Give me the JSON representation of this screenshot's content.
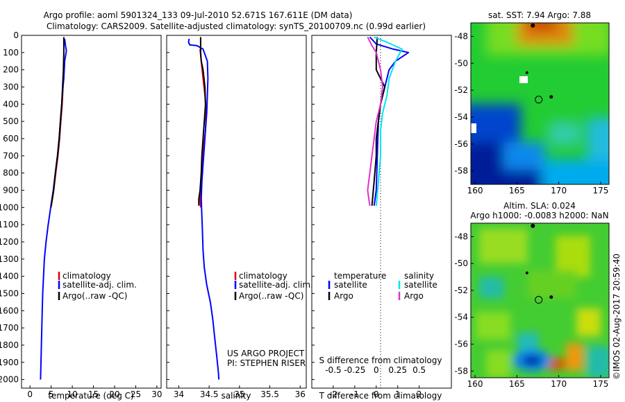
{
  "header": {
    "line1": "Argo profile: aoml 5901324_133 09-Jul-2010 52.671S 167.611E (DM data)",
    "line2": "Climatology: CARS2009. Satellite-adjusted climatology: synTS_20100709.nc (0.99d earlier)"
  },
  "colors": {
    "climatology": "#e00000",
    "satellite": "#0000ff",
    "argo": "#000000",
    "salinity_satellite": "#00e5ee",
    "salinity_argo": "#dd33cc"
  },
  "credits": {
    "project": "US ARGO PROJECT",
    "pi": "PI: STEPHEN RISER"
  },
  "watermark": "©IMOS 02-Aug-2017 20:59:40",
  "chart_data": [
    {
      "type": "line",
      "xlabel": "temperature (deg C)",
      "ylabel": "",
      "xlim": [
        -2,
        31
      ],
      "ylim": [
        2050,
        0
      ],
      "xticks": [
        0,
        5,
        10,
        15,
        20,
        25,
        30
      ],
      "yticks": [
        0,
        100,
        200,
        300,
        400,
        500,
        600,
        700,
        800,
        900,
        1000,
        1100,
        1200,
        1300,
        1400,
        1500,
        1600,
        1700,
        1800,
        1900,
        2000
      ],
      "legend": [
        "climatology",
        "satellite-adj. clim.",
        "Argo(..raw -QC)"
      ],
      "series": [
        {
          "name": "climatology",
          "color": "#e00000",
          "points": [
            [
              7.9,
              250
            ],
            [
              7.8,
              300
            ],
            [
              7.6,
              400
            ],
            [
              7.3,
              500
            ],
            [
              7.0,
              600
            ],
            [
              6.6,
              700
            ],
            [
              6.1,
              800
            ],
            [
              5.6,
              900
            ],
            [
              5.0,
              1000
            ]
          ]
        },
        {
          "name": "satellite-adj. clim.",
          "color": "#0000ff",
          "points": [
            [
              8.2,
              20
            ],
            [
              8.4,
              60
            ],
            [
              8.6,
              90
            ],
            [
              8.2,
              150
            ],
            [
              8.0,
              250
            ],
            [
              7.8,
              300
            ],
            [
              7.5,
              400
            ],
            [
              7.2,
              500
            ],
            [
              6.9,
              600
            ],
            [
              6.5,
              700
            ],
            [
              6.0,
              800
            ],
            [
              5.5,
              900
            ],
            [
              4.9,
              1000
            ],
            [
              4.3,
              1100
            ],
            [
              3.8,
              1200
            ],
            [
              3.4,
              1300
            ],
            [
              3.2,
              1400
            ],
            [
              3.0,
              1500
            ],
            [
              2.9,
              1600
            ],
            [
              2.8,
              1700
            ],
            [
              2.7,
              1800
            ],
            [
              2.6,
              1900
            ],
            [
              2.5,
              2000
            ]
          ]
        },
        {
          "name": "Argo(..raw -QC)",
          "color": "#000000",
          "points": [
            [
              8.0,
              10
            ],
            [
              8.0,
              100
            ],
            [
              7.9,
              200
            ],
            [
              7.7,
              300
            ],
            [
              7.5,
              400
            ],
            [
              7.2,
              500
            ],
            [
              6.9,
              600
            ],
            [
              6.5,
              700
            ],
            [
              6.0,
              800
            ],
            [
              5.6,
              900
            ],
            [
              5.0,
              990
            ]
          ]
        }
      ]
    },
    {
      "type": "line",
      "xlabel": "salinity",
      "ylabel": "",
      "xlim": [
        33.8,
        36.1
      ],
      "ylim": [
        2050,
        0
      ],
      "xticks": [
        34,
        34.5,
        35,
        35.5,
        36
      ],
      "xticklabels": [
        "34",
        "34.5",
        "35",
        "35.5",
        "36"
      ],
      "legend": [
        "climatology",
        "satellite-adj. clim.",
        "Argo(..raw -QC)"
      ],
      "series": [
        {
          "name": "climatology",
          "color": "#e00000",
          "points": [
            [
              34.35,
              80
            ],
            [
              34.37,
              150
            ],
            [
              34.4,
              250
            ],
            [
              34.43,
              350
            ],
            [
              34.45,
              450
            ],
            [
              34.44,
              550
            ],
            [
              34.41,
              650
            ],
            [
              34.39,
              750
            ],
            [
              34.37,
              850
            ],
            [
              34.35,
              950
            ],
            [
              34.36,
              1000
            ]
          ]
        },
        {
          "name": "satellite-adj. clim.",
          "color": "#0000ff",
          "points": [
            [
              34.17,
              20
            ],
            [
              34.16,
              40
            ],
            [
              34.18,
              55
            ],
            [
              34.3,
              60
            ],
            [
              34.4,
              80
            ],
            [
              34.47,
              150
            ],
            [
              34.48,
              250
            ],
            [
              34.47,
              350
            ],
            [
              34.46,
              450
            ],
            [
              34.44,
              550
            ],
            [
              34.42,
              650
            ],
            [
              34.4,
              750
            ],
            [
              34.38,
              850
            ],
            [
              34.37,
              950
            ],
            [
              34.38,
              1050
            ],
            [
              34.39,
              1150
            ],
            [
              34.4,
              1250
            ],
            [
              34.42,
              1350
            ],
            [
              34.46,
              1450
            ],
            [
              34.52,
              1550
            ],
            [
              34.56,
              1650
            ],
            [
              34.59,
              1750
            ],
            [
              34.62,
              1850
            ],
            [
              34.65,
              1950
            ],
            [
              34.66,
              2000
            ]
          ]
        },
        {
          "name": "Argo(..raw -QC)",
          "color": "#000000",
          "points": [
            [
              34.36,
              10
            ],
            [
              34.36,
              100
            ],
            [
              34.37,
              150
            ],
            [
              34.4,
              200
            ],
            [
              34.43,
              300
            ],
            [
              34.44,
              400
            ],
            [
              34.42,
              500
            ],
            [
              34.4,
              600
            ],
            [
              34.38,
              700
            ],
            [
              34.37,
              800
            ],
            [
              34.35,
              900
            ],
            [
              34.33,
              950
            ],
            [
              34.33,
              990
            ]
          ]
        }
      ]
    },
    {
      "type": "line",
      "xlabel": "T difference from climatology",
      "x2label": "S difference from climatology",
      "xlim": [
        -3,
        3.5
      ],
      "ylim": [
        2050,
        0
      ],
      "xticks": [
        -2,
        -1,
        0,
        1,
        2
      ],
      "x2ticklabels": [
        "-0.5",
        "-0.25",
        "0",
        "0.25",
        "0.5"
      ],
      "x2tickpositions": [
        -2,
        -1,
        0,
        1,
        2
      ],
      "legend": [
        {
          "group": "temperature",
          "entries": [
            "satellite",
            "Argo"
          ]
        },
        {
          "group": "salinity",
          "entries": [
            "satellite",
            "Argo"
          ]
        }
      ],
      "series": [
        {
          "name": "temperature satellite",
          "color": "#0000ff",
          "points": [
            [
              -0.3,
              10
            ],
            [
              0,
              50
            ],
            [
              0.8,
              80
            ],
            [
              1.5,
              100
            ],
            [
              0.9,
              150
            ],
            [
              0.6,
              200
            ],
            [
              0.4,
              300
            ],
            [
              0.2,
              400
            ],
            [
              0.1,
              500
            ],
            [
              0.05,
              700
            ],
            [
              0,
              900
            ],
            [
              -0.1,
              990
            ]
          ]
        },
        {
          "name": "temperature Argo",
          "color": "#000000",
          "points": [
            [
              0.05,
              10
            ],
            [
              0,
              100
            ],
            [
              0,
              200
            ],
            [
              0.4,
              300
            ],
            [
              0.3,
              350
            ],
            [
              0.2,
              400
            ],
            [
              0.1,
              500
            ],
            [
              0,
              600
            ],
            [
              0,
              700
            ],
            [
              -0.1,
              850
            ],
            [
              -0.2,
              990
            ]
          ]
        },
        {
          "name": "salinity satellite",
          "color": "#00e5ee",
          "points": [
            [
              -0.1,
              10
            ],
            [
              0.5,
              40
            ],
            [
              1.2,
              80
            ],
            [
              0.9,
              150
            ],
            [
              0.6,
              250
            ],
            [
              0.5,
              350
            ],
            [
              0.3,
              450
            ],
            [
              0.2,
              550
            ],
            [
              0.2,
              700
            ],
            [
              0.1,
              850
            ],
            [
              0,
              990
            ]
          ]
        },
        {
          "name": "salinity Argo",
          "color": "#dd33cc",
          "points": [
            [
              -0.4,
              10
            ],
            [
              -0.2,
              60
            ],
            [
              0,
              100
            ],
            [
              0.2,
              200
            ],
            [
              0.3,
              300
            ],
            [
              0.2,
              400
            ],
            [
              0.0,
              500
            ],
            [
              -0.1,
              600
            ],
            [
              -0.2,
              700
            ],
            [
              -0.3,
              800
            ],
            [
              -0.4,
              900
            ],
            [
              -0.3,
              990
            ]
          ]
        }
      ]
    },
    {
      "type": "heatmap",
      "title": "sat. SST: 7.94 Argo: 7.88",
      "xlim": [
        159.5,
        176
      ],
      "ylim": [
        -59,
        -47
      ],
      "xticks": [
        160,
        165,
        170,
        175
      ],
      "yticks": [
        -48,
        -50,
        -52,
        -54,
        -56,
        -58
      ],
      "marker": [
        167.6,
        -52.7
      ]
    },
    {
      "type": "heatmap",
      "title": "Altim. SLA: 0.024",
      "subtitle": "Argo h1000: -0.0083 h2000: NaN",
      "xlim": [
        159.5,
        176
      ],
      "ylim": [
        -58.5,
        -47
      ],
      "xticks": [
        160,
        165,
        170,
        175
      ],
      "yticks": [
        -48,
        -50,
        -52,
        -54,
        -56,
        -58
      ],
      "marker": [
        167.6,
        -52.7
      ]
    }
  ]
}
